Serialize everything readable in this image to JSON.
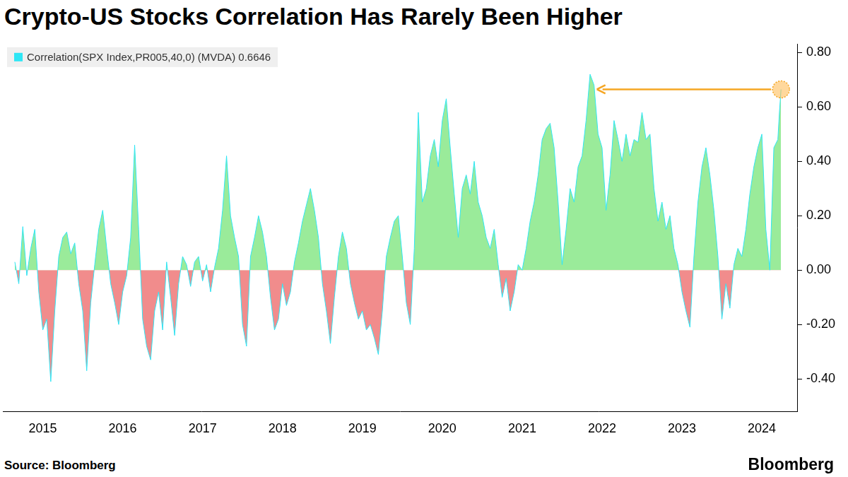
{
  "chart_data": {
    "type": "area",
    "title": "Crypto-US Stocks Correlation Has Rarely Been Higher",
    "source": "Source: Bloomberg",
    "logo": "Bloomberg",
    "x": [
      2015.15,
      2015.2,
      2015.25,
      2015.3,
      2015.35,
      2015.4,
      2015.45,
      2015.5,
      2015.55,
      2015.6,
      2015.65,
      2015.7,
      2015.75,
      2015.8,
      2015.85,
      2015.9,
      2015.95,
      2016.0,
      2016.05,
      2016.1,
      2016.15,
      2016.2,
      2016.25,
      2016.3,
      2016.35,
      2016.4,
      2016.45,
      2016.5,
      2016.55,
      2016.6,
      2016.65,
      2016.7,
      2016.75,
      2016.8,
      2016.85,
      2016.9,
      2016.95,
      2017.0,
      2017.05,
      2017.1,
      2017.15,
      2017.2,
      2017.25,
      2017.3,
      2017.35,
      2017.4,
      2017.45,
      2017.5,
      2017.55,
      2017.6,
      2017.65,
      2017.7,
      2017.75,
      2017.8,
      2017.85,
      2017.9,
      2017.95,
      2018.0,
      2018.05,
      2018.1,
      2018.15,
      2018.2,
      2018.25,
      2018.3,
      2018.35,
      2018.4,
      2018.45,
      2018.5,
      2018.55,
      2018.6,
      2018.65,
      2018.7,
      2018.75,
      2018.8,
      2018.85,
      2018.9,
      2018.95,
      2019.0,
      2019.05,
      2019.1,
      2019.15,
      2019.2,
      2019.25,
      2019.3,
      2019.35,
      2019.4,
      2019.45,
      2019.5,
      2019.55,
      2019.6,
      2019.65,
      2019.7,
      2019.75,
      2019.8,
      2019.85,
      2019.9,
      2019.95,
      2020.0,
      2020.05,
      2020.1,
      2020.15,
      2020.2,
      2020.25,
      2020.3,
      2020.35,
      2020.4,
      2020.45,
      2020.5,
      2020.55,
      2020.6,
      2020.65,
      2020.7,
      2020.75,
      2020.8,
      2020.85,
      2020.9,
      2020.95,
      2021.0,
      2021.05,
      2021.1,
      2021.15,
      2021.2,
      2021.25,
      2021.3,
      2021.35,
      2021.4,
      2021.45,
      2021.5,
      2021.55,
      2021.6,
      2021.65,
      2021.7,
      2021.75,
      2021.8,
      2021.85,
      2021.9,
      2021.95,
      2022.0,
      2022.05,
      2022.1,
      2022.15,
      2022.2,
      2022.25,
      2022.3,
      2022.35,
      2022.4,
      2022.45,
      2022.5,
      2022.55,
      2022.6,
      2022.65,
      2022.7,
      2022.75,
      2022.8,
      2022.85,
      2022.9,
      2022.95,
      2023.0,
      2023.05,
      2023.1,
      2023.15,
      2023.2,
      2023.25,
      2023.3,
      2023.35,
      2023.4,
      2023.45,
      2023.5,
      2023.55,
      2023.6,
      2023.65,
      2023.7,
      2023.75,
      2023.8,
      2023.85,
      2023.9,
      2023.95,
      2024.0,
      2024.05,
      2024.1,
      2024.15,
      2024.2,
      2024.25,
      2024.3,
      2024.35,
      2024.4,
      2024.45,
      2024.5,
      2024.55,
      2024.6,
      2024.65,
      2024.7,
      2024.72,
      2024.74
    ],
    "series": [
      {
        "name": "Correlation(SPX Index,PR005,40,0) (MVDA) 0.6646",
        "color": "#2ee6f5",
        "values": [
          0.03,
          -0.05,
          0.16,
          -0.02,
          0.08,
          0.15,
          -0.08,
          -0.22,
          -0.18,
          -0.41,
          -0.15,
          0.05,
          0.12,
          0.14,
          0.06,
          0.1,
          -0.05,
          -0.15,
          -0.37,
          -0.12,
          0.02,
          0.15,
          0.22,
          0.08,
          -0.05,
          -0.12,
          -0.2,
          -0.08,
          -0.02,
          0.12,
          0.46,
          0.15,
          -0.18,
          -0.28,
          -0.33,
          -0.15,
          -0.08,
          -0.22,
          0.03,
          -0.1,
          -0.24,
          -0.05,
          0.05,
          0.02,
          -0.06,
          0.03,
          0.05,
          -0.04,
          0.02,
          -0.08,
          0.01,
          0.08,
          0.22,
          0.42,
          0.2,
          0.12,
          0.05,
          -0.2,
          -0.28,
          0.05,
          0.12,
          0.2,
          0.14,
          0.05,
          -0.1,
          -0.22,
          -0.18,
          -0.05,
          -0.13,
          -0.08,
          0.03,
          0.1,
          0.18,
          0.24,
          0.3,
          0.22,
          0.12,
          -0.05,
          -0.15,
          -0.27,
          -0.1,
          0.05,
          0.14,
          0.08,
          -0.05,
          -0.12,
          -0.18,
          -0.15,
          -0.22,
          -0.2,
          -0.25,
          -0.31,
          -0.15,
          0.05,
          0.12,
          0.18,
          0.2,
          0.05,
          -0.12,
          -0.2,
          0.08,
          0.58,
          0.25,
          0.3,
          0.42,
          0.48,
          0.38,
          0.55,
          0.63,
          0.45,
          0.28,
          0.12,
          0.3,
          0.35,
          0.28,
          0.4,
          0.25,
          0.2,
          0.12,
          0.08,
          0.15,
          0.02,
          -0.1,
          -0.03,
          -0.15,
          -0.08,
          0.02,
          0,
          0.08,
          0.18,
          0.25,
          0.35,
          0.48,
          0.52,
          0.54,
          0.45,
          0.25,
          0.02,
          0.15,
          0.3,
          0.25,
          0.38,
          0.42,
          0.55,
          0.72,
          0.68,
          0.5,
          0.45,
          0.22,
          0.35,
          0.55,
          0.48,
          0.4,
          0.5,
          0.42,
          0.48,
          0.47,
          0.58,
          0.48,
          0.5,
          0.3,
          0.18,
          0.25,
          0.15,
          0.2,
          0.08,
          0.02,
          -0.08,
          -0.15,
          -0.21,
          0.05,
          0.25,
          0.38,
          0.45,
          0.35,
          0.22,
          0.05,
          -0.18,
          -0.05,
          -0.14,
          0.02,
          0.08,
          0.05,
          0.15,
          0.28,
          0.38,
          0.45,
          0.5,
          0.15,
          0,
          0.45,
          0.48,
          0.58,
          0.6646
        ]
      }
    ],
    "xlim": [
      2015,
      2024.95
    ],
    "xticks": [
      {
        "value": 2015.5,
        "label": "2015"
      },
      {
        "value": 2016.5,
        "label": "2016"
      },
      {
        "value": 2017.5,
        "label": "2017"
      },
      {
        "value": 2018.5,
        "label": "2018"
      },
      {
        "value": 2019.5,
        "label": "2019"
      },
      {
        "value": 2020.5,
        "label": "2020"
      },
      {
        "value": 2021.5,
        "label": "2021"
      },
      {
        "value": 2022.5,
        "label": "2022"
      },
      {
        "value": 2023.5,
        "label": "2023"
      },
      {
        "value": 2024.5,
        "label": "2024"
      }
    ],
    "ylim": [
      -0.52,
      0.83
    ],
    "yticks": [
      {
        "value": -0.4,
        "label": "-0.40"
      },
      {
        "value": -0.2,
        "label": "-0.20"
      },
      {
        "value": 0,
        "label": "0.00"
      },
      {
        "value": 0.2,
        "label": "0.20"
      },
      {
        "value": 0.4,
        "label": "0.40"
      },
      {
        "value": 0.6,
        "label": "0.60"
      },
      {
        "value": 0.8,
        "label": "0.80"
      }
    ],
    "grid": false,
    "legend": "top-left"
  }
}
